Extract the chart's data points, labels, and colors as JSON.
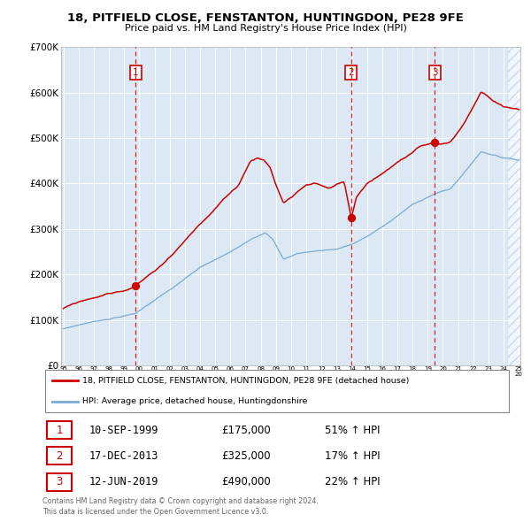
{
  "title1": "18, PITFIELD CLOSE, FENSTANTON, HUNTINGDON, PE28 9FE",
  "title2": "Price paid vs. HM Land Registry's House Price Index (HPI)",
  "legend_red": "18, PITFIELD CLOSE, FENSTANTON, HUNTINGDON, PE28 9FE (detached house)",
  "legend_blue": "HPI: Average price, detached house, Huntingdonshire",
  "footer": "Contains HM Land Registry data © Crown copyright and database right 2024.\nThis data is licensed under the Open Government Licence v3.0.",
  "purchases": [
    {
      "num": 1,
      "date": "10-SEP-1999",
      "price": 175000,
      "pct": "51%",
      "year": 1999.75
    },
    {
      "num": 2,
      "date": "17-DEC-2013",
      "price": 325000,
      "pct": "17%",
      "year": 2013.96
    },
    {
      "num": 3,
      "date": "12-JUN-2019",
      "price": 490000,
      "pct": "22%",
      "year": 2019.45
    }
  ],
  "ylim": [
    0,
    700000
  ],
  "yticks": [
    0,
    100000,
    200000,
    300000,
    400000,
    500000,
    600000,
    700000
  ],
  "ytick_labels": [
    "£0",
    "£100K",
    "£200K",
    "£300K",
    "£400K",
    "£500K",
    "£600K",
    "£700K"
  ],
  "bg_color": "#dce9f5",
  "red_color": "#cc0000",
  "blue_color": "#7aaad0",
  "grid_color": "#ffffff",
  "vline_color": "#cc0000",
  "title_fontsize": 10,
  "subtitle_fontsize": 8.5
}
